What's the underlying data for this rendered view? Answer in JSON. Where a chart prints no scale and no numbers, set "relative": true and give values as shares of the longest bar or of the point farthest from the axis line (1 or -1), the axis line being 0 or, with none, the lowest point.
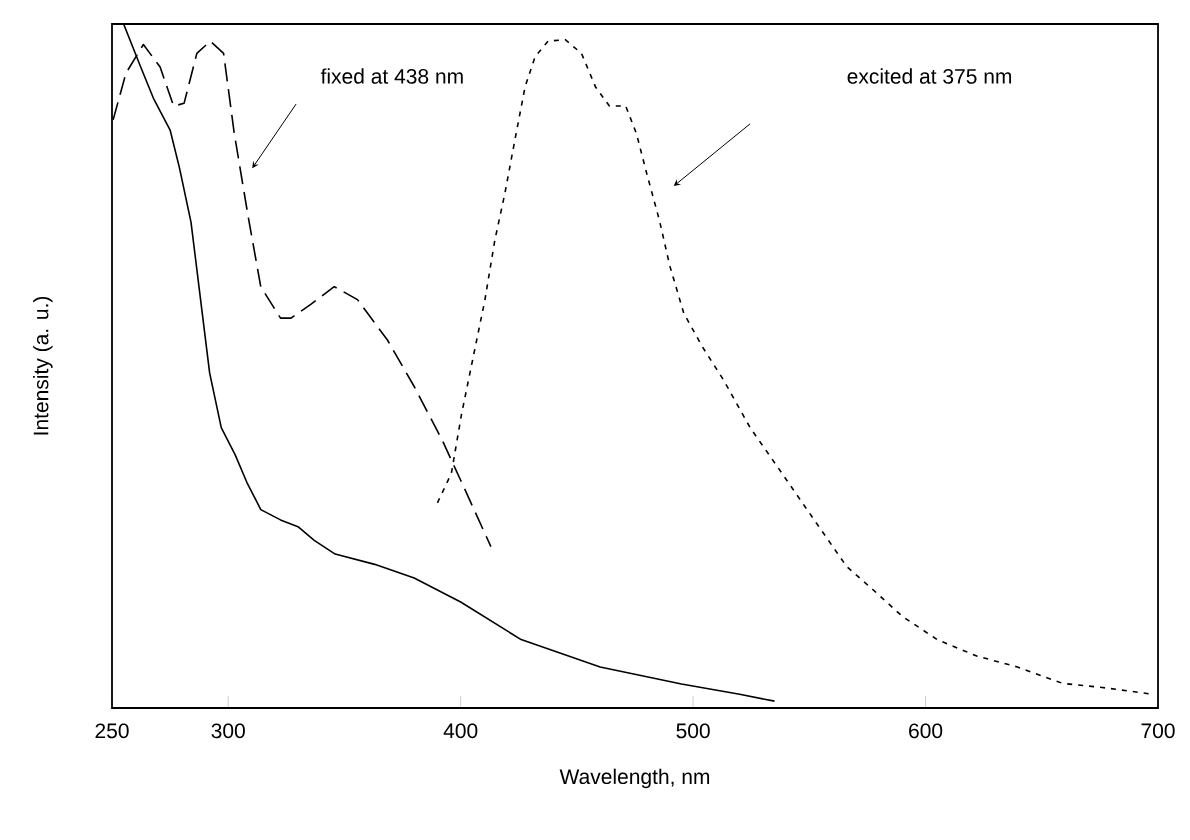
{
  "chart_data": {
    "type": "line",
    "xlabel": "Wavelength, nm",
    "ylabel": "Intensity (a. u.)",
    "relative": true,
    "xlim": [
      250,
      700
    ],
    "xticks": [
      250,
      300,
      400,
      500,
      600,
      700
    ],
    "grid": false,
    "marker": "none",
    "series": [
      {
        "color": "#000000",
        "line_style": "solid",
        "x": [
          255,
          262,
          268,
          275,
          279,
          284,
          288,
          292,
          297,
          303,
          308,
          314,
          322.5,
          330,
          337,
          346,
          363,
          380,
          400,
          426,
          460,
          495,
          520,
          535
        ],
        "values": [
          1.0,
          0.94,
          0.89,
          0.845,
          0.79,
          0.71,
          0.6,
          0.49,
          0.41,
          0.37,
          0.33,
          0.29,
          0.275,
          0.265,
          0.245,
          0.225,
          0.21,
          0.19,
          0.155,
          0.1,
          0.06,
          0.035,
          0.02,
          0.01
        ]
      },
      {
        "color": "#000000",
        "line_style": "dashed",
        "x": [
          250.5,
          256,
          263.5,
          270.7,
          276.5,
          281,
          286.5,
          292.3,
          298,
          302.6,
          308.5,
          314,
          322.5,
          327,
          335.5,
          345.6,
          355.6,
          368.5,
          380,
          392,
          400,
          413
        ],
        "values": [
          0.86,
          0.928,
          0.97,
          0.937,
          0.88,
          0.884,
          0.957,
          0.975,
          0.957,
          0.84,
          0.72,
          0.616,
          0.57,
          0.57,
          0.59,
          0.616,
          0.597,
          0.538,
          0.47,
          0.392,
          0.333,
          0.236
        ]
      },
      {
        "color": "#000000",
        "line_style": "dotted",
        "x": [
          390,
          396,
          400.4,
          404.6,
          410.4,
          414.7,
          419,
          423.3,
          427.7,
          432,
          437.6,
          445,
          452,
          458,
          464,
          471,
          475.6,
          480,
          485.5,
          490,
          496,
          504,
          513,
          524.5,
          536,
          548,
          566,
          579,
          590,
          605,
          622,
          639.5,
          659,
          676,
          698
        ],
        "values": [
          0.3,
          0.343,
          0.43,
          0.5,
          0.596,
          0.684,
          0.752,
          0.83,
          0.908,
          0.952,
          0.975,
          0.977,
          0.957,
          0.908,
          0.88,
          0.88,
          0.84,
          0.782,
          0.713,
          0.646,
          0.577,
          0.528,
          0.48,
          0.41,
          0.354,
          0.295,
          0.207,
          0.168,
          0.134,
          0.1,
          0.076,
          0.06,
          0.036,
          0.03,
          0.02
        ]
      }
    ],
    "annotations": [
      "fixed at 438 nm",
      "excited at 375 nm"
    ]
  }
}
